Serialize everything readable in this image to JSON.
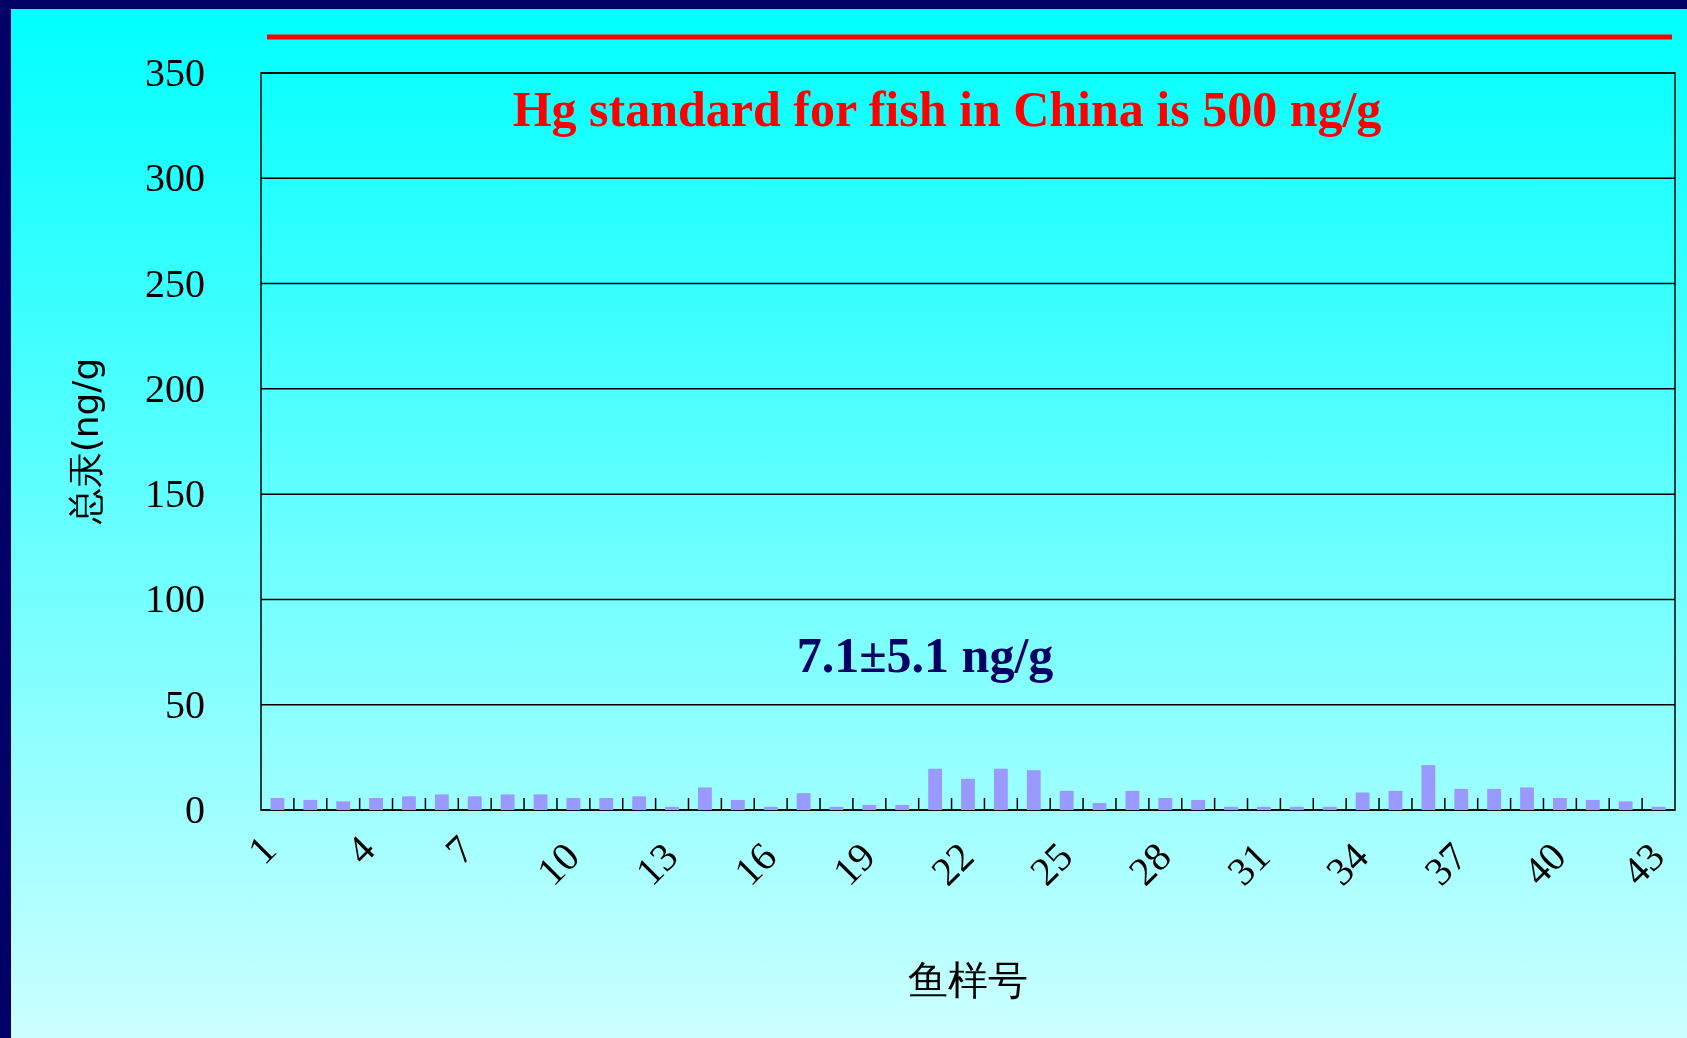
{
  "chart_data": {
    "type": "bar",
    "xlabel": "鱼样号",
    "ylabel": "总汞(ng/g",
    "categories": [
      "1",
      null,
      null,
      "4",
      null,
      null,
      "7",
      null,
      null,
      "10",
      null,
      null,
      "13",
      null,
      null,
      "16",
      null,
      null,
      "19",
      null,
      null,
      "22",
      null,
      null,
      "25",
      null,
      null,
      "28",
      null,
      null,
      "31",
      null,
      null,
      "34",
      null,
      null,
      "37",
      null,
      null,
      "40",
      null,
      null,
      "43"
    ],
    "values": [
      5.7,
      4.8,
      4.1,
      5.7,
      6.5,
      7.4,
      6.5,
      7.4,
      7.4,
      5.7,
      5.7,
      6.5,
      1.5,
      10.7,
      4.8,
      1.5,
      8.0,
      1.5,
      2.4,
      2.4,
      19.6,
      14.8,
      19.6,
      18.9,
      9.1,
      3.3,
      9.1,
      5.7,
      4.8,
      1.5,
      1.5,
      1.5,
      1.5,
      8.3,
      9.1,
      21.3,
      10.0,
      10.0,
      10.7,
      5.7,
      4.8,
      4.1,
      1.5
    ],
    "color": "#9999ff",
    "ylim": [
      0,
      350
    ],
    "yticks": [
      0,
      50,
      100,
      150,
      200,
      250,
      300,
      350
    ],
    "grid": "y",
    "annotations": [
      "Hg standard for fish in China is 500 ng/g",
      "7.1±5.1 ng/g"
    ]
  }
}
